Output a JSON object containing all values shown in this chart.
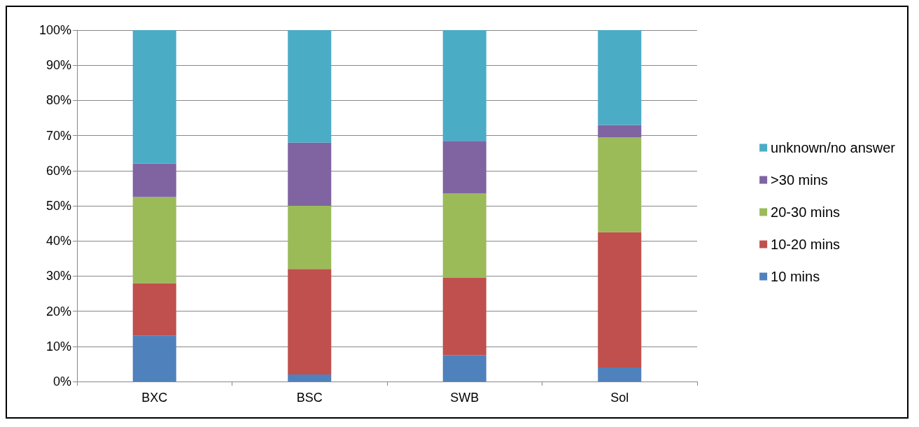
{
  "chart_data": {
    "type": "bar",
    "stacked": true,
    "categories": [
      "BXC",
      "BSC",
      "SWB",
      "Sol"
    ],
    "series": [
      {
        "name": "10 mins",
        "color": "#4f81bd",
        "values": [
          13,
          2,
          7.5,
          4
        ]
      },
      {
        "name": "10-20 mins",
        "color": "#c0504d",
        "values": [
          15,
          30,
          22,
          38.5
        ]
      },
      {
        "name": "20-30 mins",
        "color": "#9bbb59",
        "values": [
          24.5,
          18,
          24,
          27
        ]
      },
      {
        "name": ">30 mins",
        "color": "#8064a2",
        "values": [
          9.5,
          18,
          15,
          3.5
        ]
      },
      {
        "name": "unknown/no answer",
        "color": "#4bacc6",
        "values": [
          38,
          32,
          31.5,
          27
        ]
      }
    ],
    "ylim": [
      0,
      100
    ],
    "yticks": [
      {
        "value": 0,
        "label": "0%"
      },
      {
        "value": 10,
        "label": "10%"
      },
      {
        "value": 20,
        "label": "20%"
      },
      {
        "value": 30,
        "label": "30%"
      },
      {
        "value": 40,
        "label": "40%"
      },
      {
        "value": 50,
        "label": "50%"
      },
      {
        "value": 60,
        "label": "60%"
      },
      {
        "value": 70,
        "label": "70%"
      },
      {
        "value": 80,
        "label": "80%"
      },
      {
        "value": 90,
        "label": "90%"
      },
      {
        "value": 100,
        "label": "100%"
      }
    ],
    "grid": "y",
    "legend": "right"
  }
}
